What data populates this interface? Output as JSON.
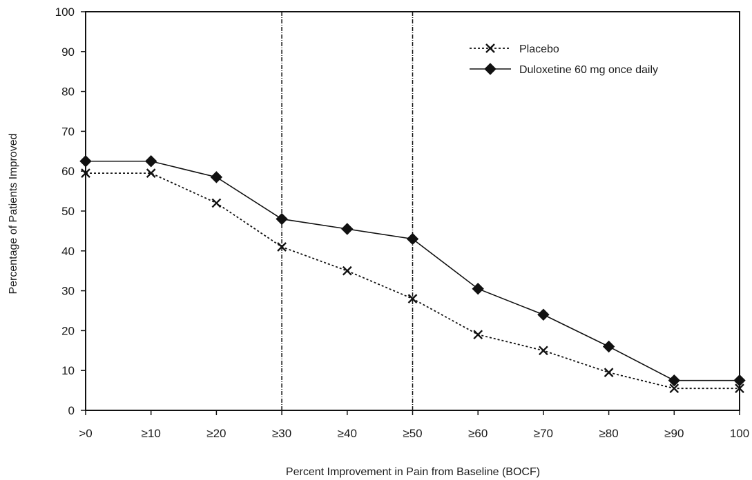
{
  "chart_data": {
    "type": "line",
    "title": "",
    "xlabel": "Percent Improvement in Pain from Baseline (BOCF)",
    "ylabel": "Percentage of Patients Improved",
    "categories": [
      ">0",
      "≥10",
      "≥20",
      "≥30",
      "≥40",
      "≥50",
      "≥60",
      "≥70",
      "≥80",
      "≥90",
      "100"
    ],
    "ylim": [
      0,
      100
    ],
    "yticks": [
      0,
      10,
      20,
      30,
      40,
      50,
      60,
      70,
      80,
      90,
      100
    ],
    "reference_lines_at_categories": [
      "≥30",
      "≥50"
    ],
    "grid": false,
    "legend_position": "top-right",
    "series": [
      {
        "name": "Placebo",
        "marker": "x",
        "line_style": "dotted",
        "color": "#111111",
        "values": [
          59.5,
          59.5,
          52,
          41,
          35,
          28,
          19,
          15,
          9.5,
          5.5,
          5.5
        ]
      },
      {
        "name": "Duloxetine 60 mg once daily",
        "marker": "diamond",
        "line_style": "solid",
        "color": "#111111",
        "values": [
          62.5,
          62.5,
          58.5,
          48,
          45.5,
          43,
          30.5,
          24,
          16,
          7.5,
          7.5
        ]
      }
    ]
  }
}
